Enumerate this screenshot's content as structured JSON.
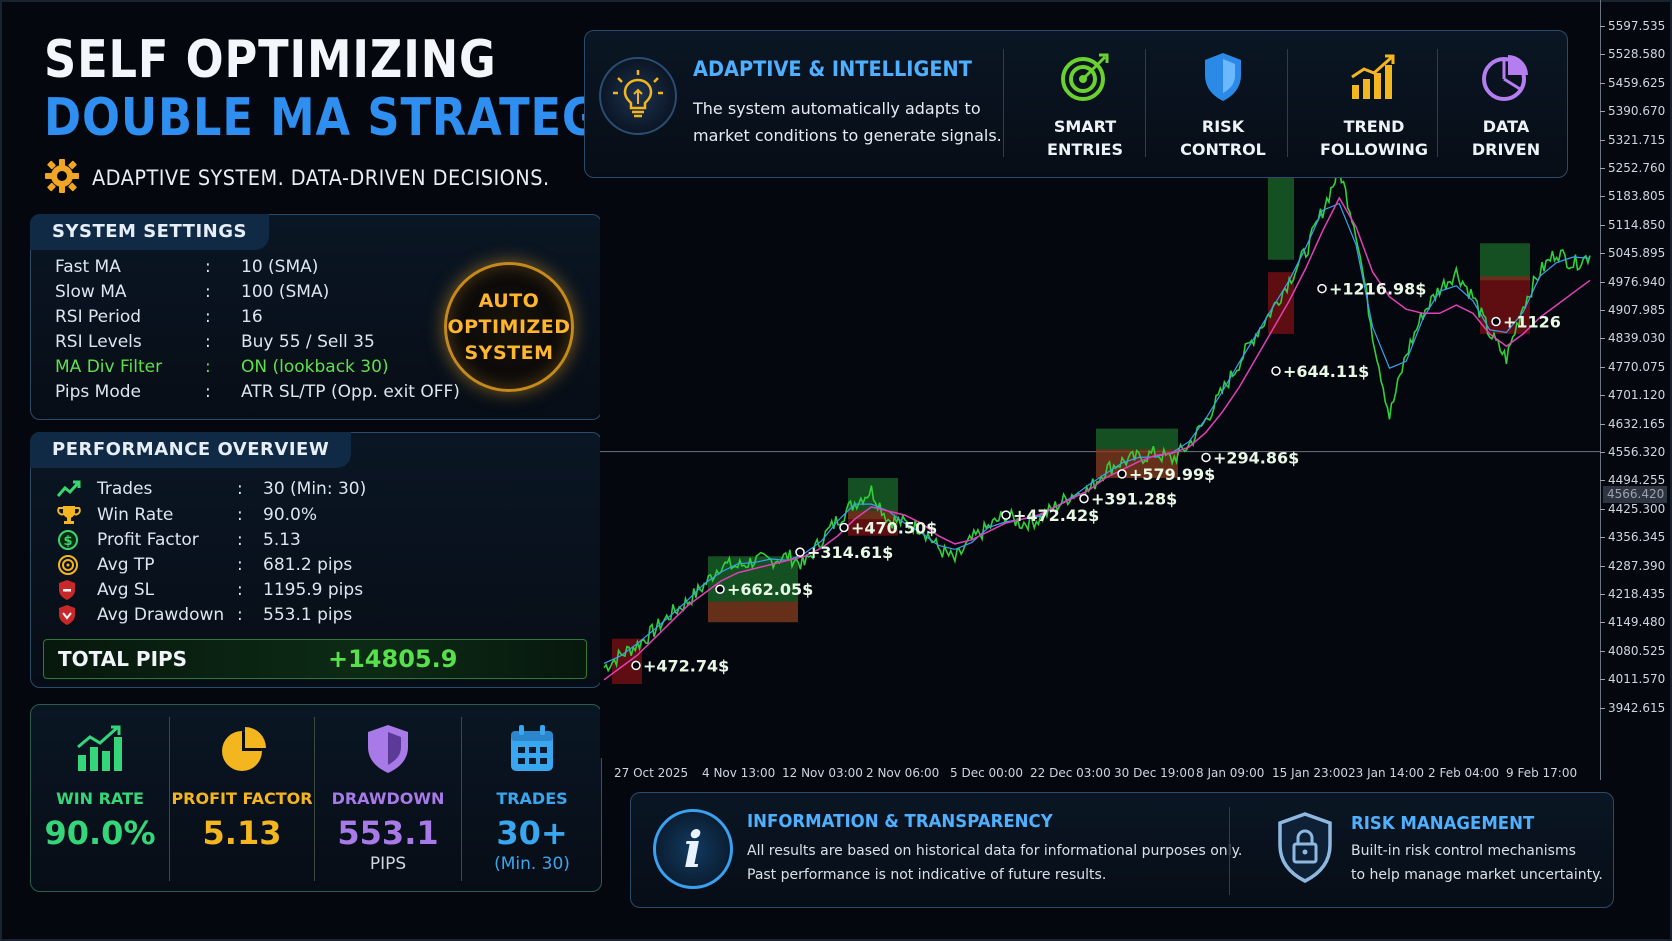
{
  "header": {
    "title_line1": "SELF OPTIMIZING",
    "title_line2": "DOUBLE MA STRATEGY",
    "subtitle": "ADAPTIVE SYSTEM. DATA-DRIVEN DECISIONS."
  },
  "settings": {
    "title": "SYSTEM SETTINGS",
    "rows": [
      {
        "key": "Fast MA",
        "sep": ":",
        "value": "10  (SMA)"
      },
      {
        "key": "Slow MA",
        "sep": ":",
        "value": "100 (SMA)"
      },
      {
        "key": "RSI Period",
        "sep": ":",
        "value": "16"
      },
      {
        "key": "RSI Levels",
        "sep": ":",
        "value": "Buy 55 / Sell 35"
      },
      {
        "key": "MA Div Filter",
        "sep": ":",
        "value": "ON (lookback 30)"
      },
      {
        "key": "Pips Mode",
        "sep": ":",
        "value": "ATR SL/TP (Opp. exit OFF)"
      }
    ],
    "badge": [
      "AUTO",
      "OPTIMIZED",
      "SYSTEM"
    ]
  },
  "performance": {
    "title": "PERFORMANCE OVERVIEW",
    "rows": [
      {
        "key": "Trades",
        "sep": ":",
        "value": "30 (Min: 30)",
        "icon": "chart-up-icon"
      },
      {
        "key": "Win Rate",
        "sep": ":",
        "value": "90.0%",
        "icon": "trophy-icon"
      },
      {
        "key": "Profit Factor",
        "sep": ":",
        "value": "5.13",
        "icon": "dollar-icon"
      },
      {
        "key": "Avg TP",
        "sep": ":",
        "value": "681.2 pips",
        "icon": "target-icon"
      },
      {
        "key": "Avg SL",
        "sep": ":",
        "value": "1195.9 pips",
        "icon": "shield-stop-icon"
      },
      {
        "key": "Avg Drawdown",
        "sep": ":",
        "value": "553.1 pips",
        "icon": "shield-down-icon"
      }
    ],
    "total_label": "TOTAL PIPS",
    "total_value": "+14805.9"
  },
  "stats": [
    {
      "label": "WIN RATE",
      "value": "90.0%",
      "sub": "",
      "color": "#35d67a",
      "icon": "bar-chart-icon"
    },
    {
      "label": "PROFIT FACTOR",
      "value": "5.13",
      "sub": "",
      "color": "#f4b61e",
      "icon": "pie-chart-icon"
    },
    {
      "label": "DRAWDOWN",
      "value": "553.1",
      "sub": "PIPS",
      "color": "#a77ae8",
      "icon": "shield-icon"
    },
    {
      "label": "TRADES",
      "value": "30+",
      "sub": "(Min. 30)",
      "color": "#39a6f0",
      "icon": "calendar-icon"
    }
  ],
  "banner": {
    "title": "ADAPTIVE & INTELLIGENT",
    "desc_line1": "The system automatically adapts to",
    "desc_line2": "market conditions to generate signals.",
    "features": [
      {
        "line1": "SMART",
        "line2": "ENTRIES",
        "icon": "target-icon"
      },
      {
        "line1": "RISK",
        "line2": "CONTROL",
        "icon": "shield-icon"
      },
      {
        "line1": "TREND",
        "line2": "FOLLOWING",
        "icon": "trend-chart-icon"
      },
      {
        "line1": "DATA",
        "line2": "DRIVEN",
        "icon": "pie-chart-icon"
      }
    ]
  },
  "chart_data": {
    "type": "line",
    "price_ticks": [
      "5597.535",
      "5528.580",
      "5459.625",
      "5390.670",
      "5321.715",
      "5252.760",
      "5183.805",
      "5114.850",
      "5045.895",
      "4976.940",
      "4907.985",
      "4839.030",
      "4770.075",
      "4701.120",
      "4632.165",
      "4556.320",
      "4494.255",
      "4425.300",
      "4356.345",
      "4287.390",
      "4218.435",
      "4149.480",
      "4080.525",
      "4011.570",
      "3942.615"
    ],
    "current_price": "4566.420",
    "date_ticks": [
      "27 Oct 2025",
      "4 Nov 13:00",
      "12 Nov 03:00",
      "2 Nov 06:00",
      "5 Dec 00:00",
      "22 Dec 03:00",
      "30 Dec 19:00",
      "8 Jan 09:00",
      "15 Jan 23:00",
      "23 Jan 14:00",
      "2 Feb 04:00",
      "9 Feb 17:00"
    ],
    "trade_labels": [
      "+472.74$",
      "+662.05$",
      "+314.61$",
      "+470.50$",
      "+472.42$",
      "+391.28$",
      "+579.99$",
      "+294.86$",
      "+644.11$",
      "+1216.98$",
      "+1126"
    ],
    "series": [
      {
        "values": [
          4040,
          4070,
          4095,
          4130,
          4170,
          4200,
          4240,
          4290,
          4285,
          4300,
          4300,
          4310,
          4290,
          4350,
          4400,
          4440,
          4470,
          4400,
          4390,
          4380,
          4330,
          4300,
          4350,
          4380,
          4410,
          4390,
          4400,
          4430,
          4460,
          4470,
          4520,
          4540,
          4550,
          4560,
          4545,
          4580,
          4640,
          4710,
          4780,
          4850,
          4910,
          4980,
          5050,
          5150,
          5250,
          5100,
          4850,
          4650,
          4800,
          4900,
          4960,
          5000,
          4940,
          4850,
          4790,
          4920,
          5000,
          5050,
          5020,
          5040
        ]
      },
      {
        "values": [
          4010,
          4040,
          4070,
          4110,
          4150,
          4190,
          4220,
          4250,
          4270,
          4280,
          4290,
          4300,
          4310,
          4330,
          4360,
          4400,
          4430,
          4420,
          4410,
          4390,
          4360,
          4340,
          4350,
          4370,
          4390,
          4400,
          4410,
          4430,
          4450,
          4470,
          4500,
          4520,
          4540,
          4555,
          4560,
          4575,
          4610,
          4660,
          4720,
          4790,
          4860,
          4930,
          5010,
          5100,
          5180,
          5110,
          5000,
          4940,
          4910,
          4900,
          4900,
          4920,
          4900,
          4850,
          4820,
          4850,
          4890,
          4920,
          4950,
          4980
        ]
      }
    ]
  }
}
